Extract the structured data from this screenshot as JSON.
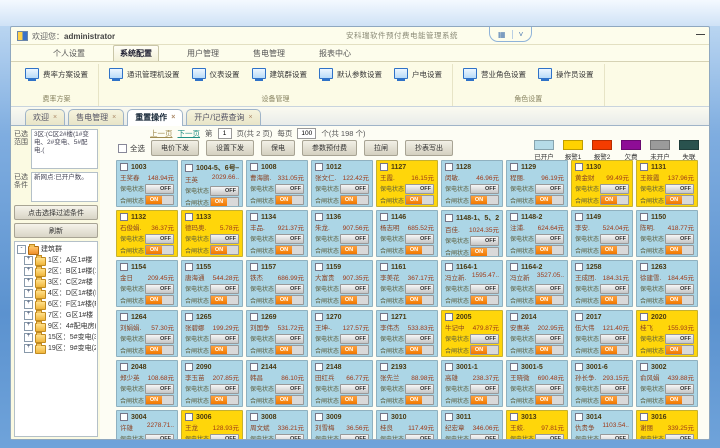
{
  "window": {
    "welcome_label": "欢迎您：",
    "username": "administrator",
    "app_title": "安科瑞软件预付费电能管理系统",
    "minimize_glyph": "—"
  },
  "icons": {
    "pill_grid": "▦",
    "pill_chevron": "˅",
    "tab_close": "×",
    "tree_collapse": "-",
    "tree_expand": "+"
  },
  "menu": {
    "items": [
      {
        "label": "个人设置",
        "active": false
      },
      {
        "label": "系统配置",
        "active": true
      },
      {
        "label": "用户管理",
        "active": false
      },
      {
        "label": "售电管理",
        "active": false
      },
      {
        "label": "报表中心",
        "active": false
      }
    ]
  },
  "ribbon": {
    "groups": [
      {
        "label": "费率方案",
        "buttons": [
          "费率方案设置"
        ]
      },
      {
        "label": "设备管理",
        "buttons": [
          "通讯管理机设置",
          "仪表设置",
          "建筑群设置",
          "默认参数设置",
          "户电设置"
        ]
      },
      {
        "label": "角色设置",
        "buttons": [
          "营业角色设置",
          "操作员设置"
        ]
      }
    ]
  },
  "tabs": [
    {
      "label": "欢迎",
      "active": false
    },
    {
      "label": "售电管理",
      "active": false
    },
    {
      "label": "重置操作",
      "active": true
    },
    {
      "label": "开户/记费查询",
      "active": false
    }
  ],
  "pagination": {
    "prev_label": "上一页",
    "next_label": "下一页",
    "page_label_pre": "第",
    "page_value": "1",
    "page_label_post": "页(共 2 页)",
    "per_label_pre": "每页",
    "per_value": "100",
    "per_label_post": "个(共 198 个)"
  },
  "toolbar": {
    "select_all_label": "全选",
    "buttons": [
      "电价下发",
      "设置下发",
      "保电",
      "参数预付费",
      "拉闸",
      "抄表写出"
    ]
  },
  "legend": [
    {
      "label": "已开户",
      "color": "#b5dbe8"
    },
    {
      "label": "报警1",
      "color": "#ffd200"
    },
    {
      "label": "报警2",
      "color": "#f43c00"
    },
    {
      "label": "欠费",
      "color": "#8e0d96"
    },
    {
      "label": "未开户",
      "color": "#9b9b9b"
    },
    {
      "label": "失联",
      "color": "#29524e"
    }
  ],
  "filter_panel": {
    "range_label": "已选范围",
    "range_value": "3区:(C区2#楼(1#变电、2#变电、5#配电.(",
    "cond_label": "已选条件",
    "cond_value": "新网点:已开户数。",
    "filter_button": "点击选择过滤条件",
    "refresh_button": "刷新"
  },
  "tree": {
    "root": "建筑群",
    "items": [
      "1区：A区1#楼",
      "2区：B区1#楼(1#变",
      "3区：C区2#楼",
      "4区：D区1#楼(D区1",
      "6区：F区1#楼(F区1#",
      "7区：G区1#楼",
      "9区：4#配电房(4#配",
      "15区：5#变电(3#变电",
      "19区：9#变电(2#变"
    ]
  },
  "card_labels": {
    "baodian": "保电状态",
    "hezha": "合闸状态",
    "off_text": "OFF",
    "on_text": "ON"
  },
  "card_colors": {
    "open": "#acd6e6",
    "alarm": "#ffd60a",
    "on": "#f07800"
  },
  "cards": [
    {
      "room": "1003",
      "name": "王奖春",
      "balance": "148.94元",
      "status": "open"
    },
    {
      "room": "1004-5、6号—",
      "name": "王英",
      "balance": "2029.66..",
      "status": "open"
    },
    {
      "room": "1008",
      "name": "曹海鹏.",
      "balance": "331.05元",
      "status": "open"
    },
    {
      "room": "1012",
      "name": "张文仁.",
      "balance": "122.42元",
      "status": "open"
    },
    {
      "room": "1127",
      "name": "王霞.",
      "balance": "16.15元",
      "status": "alarm"
    },
    {
      "room": "1128",
      "name": "闵敏.",
      "balance": "46.96元",
      "status": "open"
    },
    {
      "room": "1129",
      "name": "程丽.",
      "balance": "96.19元",
      "status": "open"
    },
    {
      "room": "1130",
      "name": "黄金财",
      "balance": "99.49元",
      "status": "alarm"
    },
    {
      "room": "1131",
      "name": "王筱霞",
      "balance": "137.96元",
      "status": "alarm"
    },
    {
      "room": "1132",
      "name": "石俊娟.",
      "balance": "36.37元",
      "status": "alarm"
    },
    {
      "room": "1133",
      "name": "德玛奥.",
      "balance": "5.78元",
      "status": "alarm"
    },
    {
      "room": "1134",
      "name": "丰品.",
      "balance": "921.37元",
      "status": "open"
    },
    {
      "room": "1136",
      "name": "朱龙.",
      "balance": "907.56元",
      "status": "open"
    },
    {
      "room": "1146",
      "name": "杨志明",
      "balance": "685.52元",
      "status": "open"
    },
    {
      "room": "1148-1、5、22",
      "name": "百佳.",
      "balance": "1024.35元",
      "status": "open"
    },
    {
      "room": "1148-2",
      "name": "注浦.",
      "balance": "624.64元",
      "status": "open"
    },
    {
      "room": "1149",
      "name": "李安.",
      "balance": "524.04元",
      "status": "open"
    },
    {
      "room": "1150",
      "name": "陈明.",
      "balance": "418.77元",
      "status": "open"
    },
    {
      "room": "1154",
      "name": "金日",
      "balance": "209.45元",
      "status": "open"
    },
    {
      "room": "1155",
      "name": "唐海通",
      "balance": "544.28元",
      "status": "open"
    },
    {
      "room": "1157",
      "name": "铁杰",
      "balance": "686.99元",
      "status": "open"
    },
    {
      "room": "1159",
      "name": "大富贵",
      "balance": "907.35元",
      "status": "open"
    },
    {
      "room": "1161",
      "name": "李美花",
      "balance": "367.17元",
      "status": "open"
    },
    {
      "room": "1164-1",
      "name": "冯立新.",
      "balance": "1595.47..",
      "status": "open"
    },
    {
      "room": "1164-2",
      "name": "冯立新",
      "balance": "3527.05..",
      "status": "open"
    },
    {
      "room": "1258",
      "name": "王成团.",
      "balance": "184.31元",
      "status": "open"
    },
    {
      "room": "1263",
      "name": "徐建雪.",
      "balance": "184.45元",
      "status": "open"
    },
    {
      "room": "1264",
      "name": "刘娟娟.",
      "balance": "57.30元",
      "status": "open"
    },
    {
      "room": "1265",
      "name": "张碧娜",
      "balance": "199.29元",
      "status": "open"
    },
    {
      "room": "1269",
      "name": "刘国争",
      "balance": "531.72元",
      "status": "open"
    },
    {
      "room": "1270",
      "name": "王坤-.",
      "balance": "127.57元",
      "status": "open"
    },
    {
      "room": "1271",
      "name": "李伟杰",
      "balance": "533.83元",
      "status": "open"
    },
    {
      "room": "2005",
      "name": "牛记中",
      "balance": "479.87元",
      "status": "alarm"
    },
    {
      "room": "2014",
      "name": "安惠英",
      "balance": "202.95元",
      "status": "open"
    },
    {
      "room": "2017",
      "name": "伍大伟",
      "balance": "121.40元",
      "status": "open"
    },
    {
      "room": "2020",
      "name": "桂飞",
      "balance": "155.93元",
      "status": "alarm"
    },
    {
      "room": "2048",
      "name": "郑少英",
      "balance": "108.68元",
      "status": "open"
    },
    {
      "room": "2090",
      "name": "李玉苗",
      "balance": "207.85元",
      "status": "open"
    },
    {
      "room": "2144",
      "name": "韩昌",
      "balance": "86.10元",
      "status": "open"
    },
    {
      "room": "2148",
      "name": "田红兵",
      "balance": "66.77元",
      "status": "open"
    },
    {
      "room": "2193",
      "name": "张先兰",
      "balance": "88.98元",
      "status": "open"
    },
    {
      "room": "3001-1",
      "name": "高雄",
      "balance": "238.37元",
      "status": "open"
    },
    {
      "room": "3001-5",
      "name": "王晓微",
      "balance": "690.48元",
      "status": "open"
    },
    {
      "room": "3001-6",
      "name": "孙长争.",
      "balance": "293.15元",
      "status": "open"
    },
    {
      "room": "3002",
      "name": "俞风娟",
      "balance": "439.88元",
      "status": "open"
    },
    {
      "room": "3004",
      "name": "许雄",
      "balance": "2278.71..",
      "status": "open"
    },
    {
      "room": "3006",
      "name": "王龙",
      "balance": "128.93元",
      "status": "alarm"
    },
    {
      "room": "3008",
      "name": "周文斌",
      "balance": "336.21元",
      "status": "open"
    },
    {
      "room": "3009",
      "name": "刘雪梅",
      "balance": "36.56元",
      "status": "open"
    },
    {
      "room": "3010",
      "name": "桂良",
      "balance": "117.49元",
      "status": "open"
    },
    {
      "room": "3011",
      "name": "纪宏章",
      "balance": "346.06元",
      "status": "open"
    },
    {
      "room": "3013",
      "name": "王蛟.",
      "balance": "97.81元",
      "status": "alarm"
    },
    {
      "room": "3014",
      "name": "仇贵争",
      "balance": "1103.54..",
      "status": "open"
    },
    {
      "room": "3016",
      "name": "谢丽",
      "balance": "339.25元",
      "status": "alarm"
    }
  ]
}
